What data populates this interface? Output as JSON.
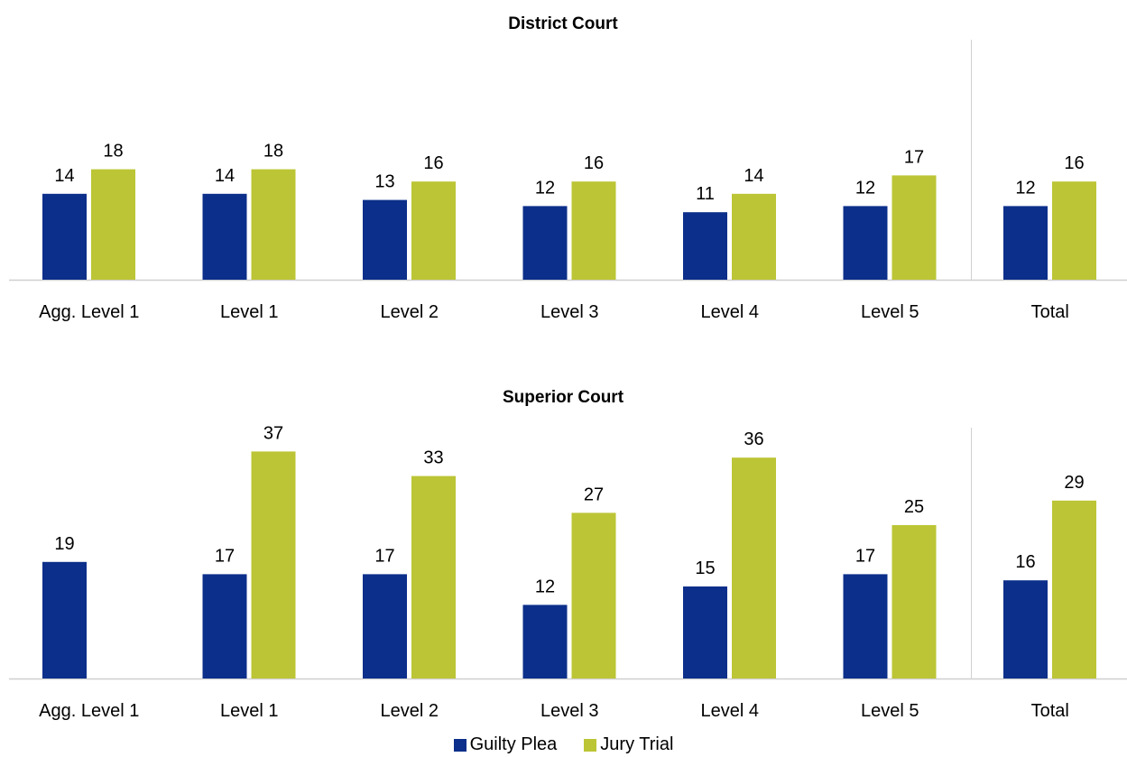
{
  "colors": {
    "guilty_plea": "#0B2F8A",
    "jury_trial": "#BCC535",
    "axis": "#d0d0d0"
  },
  "legend": [
    {
      "key": "guilty_plea",
      "label": "Guilty Plea"
    },
    {
      "key": "jury_trial",
      "label": "Jury Trial"
    }
  ],
  "chart_data": [
    {
      "type": "bar",
      "title": "District Court",
      "categories": [
        "Agg. Level 1",
        "Level 1",
        "Level 2",
        "Level 3",
        "Level 4",
        "Level 5",
        "Total"
      ],
      "series": [
        {
          "name": "Guilty Plea",
          "color_key": "guilty_plea",
          "values": [
            14,
            14,
            13,
            12,
            11,
            12,
            12
          ]
        },
        {
          "name": "Jury Trial",
          "color_key": "jury_trial",
          "values": [
            18,
            18,
            16,
            16,
            14,
            17,
            16
          ]
        }
      ],
      "ylim": [
        0,
        40
      ],
      "grid": false,
      "separator_before_category": "Total",
      "legend_position": "bottom"
    },
    {
      "type": "bar",
      "title": "Superior Court",
      "categories": [
        "Agg. Level 1",
        "Level 1",
        "Level 2",
        "Level 3",
        "Level 4",
        "Level 5",
        "Total"
      ],
      "series": [
        {
          "name": "Guilty Plea",
          "color_key": "guilty_plea",
          "values": [
            19,
            17,
            17,
            12,
            15,
            17,
            16
          ]
        },
        {
          "name": "Jury Trial",
          "color_key": "jury_trial",
          "values": [
            null,
            37,
            33,
            27,
            36,
            25,
            29
          ]
        }
      ],
      "ylim": [
        0,
        40
      ],
      "grid": false,
      "separator_before_category": "Total",
      "legend_position": "bottom"
    }
  ]
}
